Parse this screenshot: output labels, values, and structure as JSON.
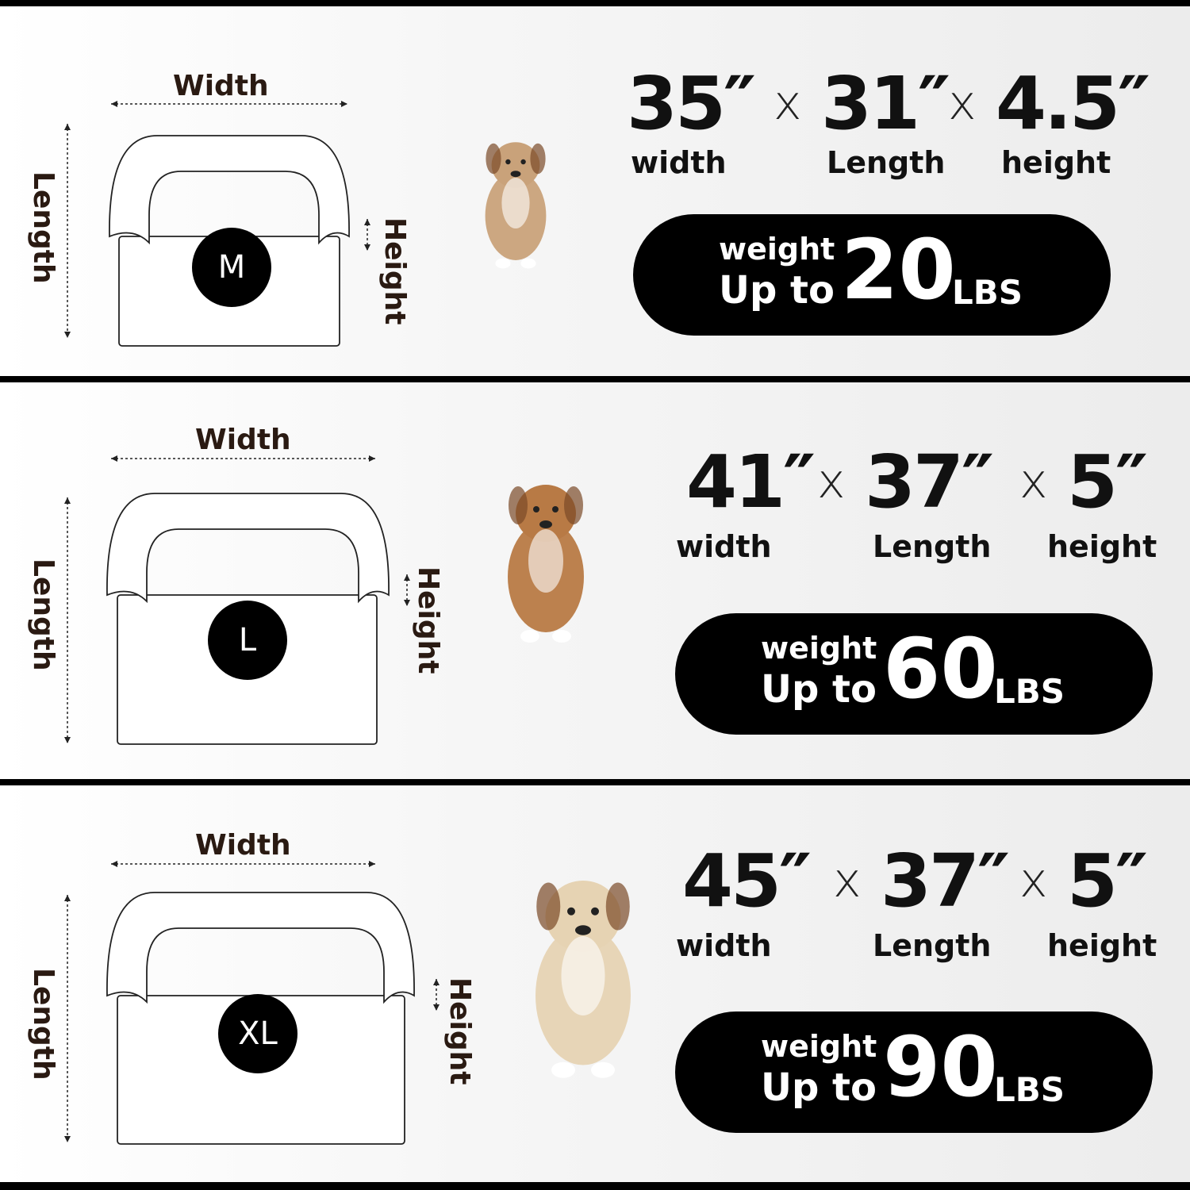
{
  "labels": {
    "width": "Width",
    "length": "Length",
    "height": "Height"
  },
  "sizes": [
    {
      "size": "M",
      "dims": [
        "35″",
        "31″",
        "4.5″"
      ],
      "dim_labels": [
        "width",
        "Length",
        "height"
      ],
      "separator": "x",
      "weight_label": "weight",
      "up_to": "Up to",
      "weight": "20",
      "unit": "LBS",
      "dog": "french-bulldog"
    },
    {
      "size": "L",
      "dims": [
        "41″",
        "37″",
        "5″"
      ],
      "dim_labels": [
        "width",
        "Length",
        "height"
      ],
      "separator": "x",
      "weight_label": "weight",
      "up_to": "Up to",
      "weight": "60",
      "unit": "LBS",
      "dog": "beagle"
    },
    {
      "size": "XL",
      "dims": [
        "45″",
        "37″",
        "5″"
      ],
      "dim_labels": [
        "width",
        "Length",
        "height"
      ],
      "separator": "x",
      "weight_label": "weight",
      "up_to": "Up to",
      "weight": "90",
      "unit": "LBS",
      "dog": "labrador"
    }
  ],
  "colors": {
    "separator": "#000000",
    "pill": "#000000",
    "label": "#2a1a12"
  }
}
